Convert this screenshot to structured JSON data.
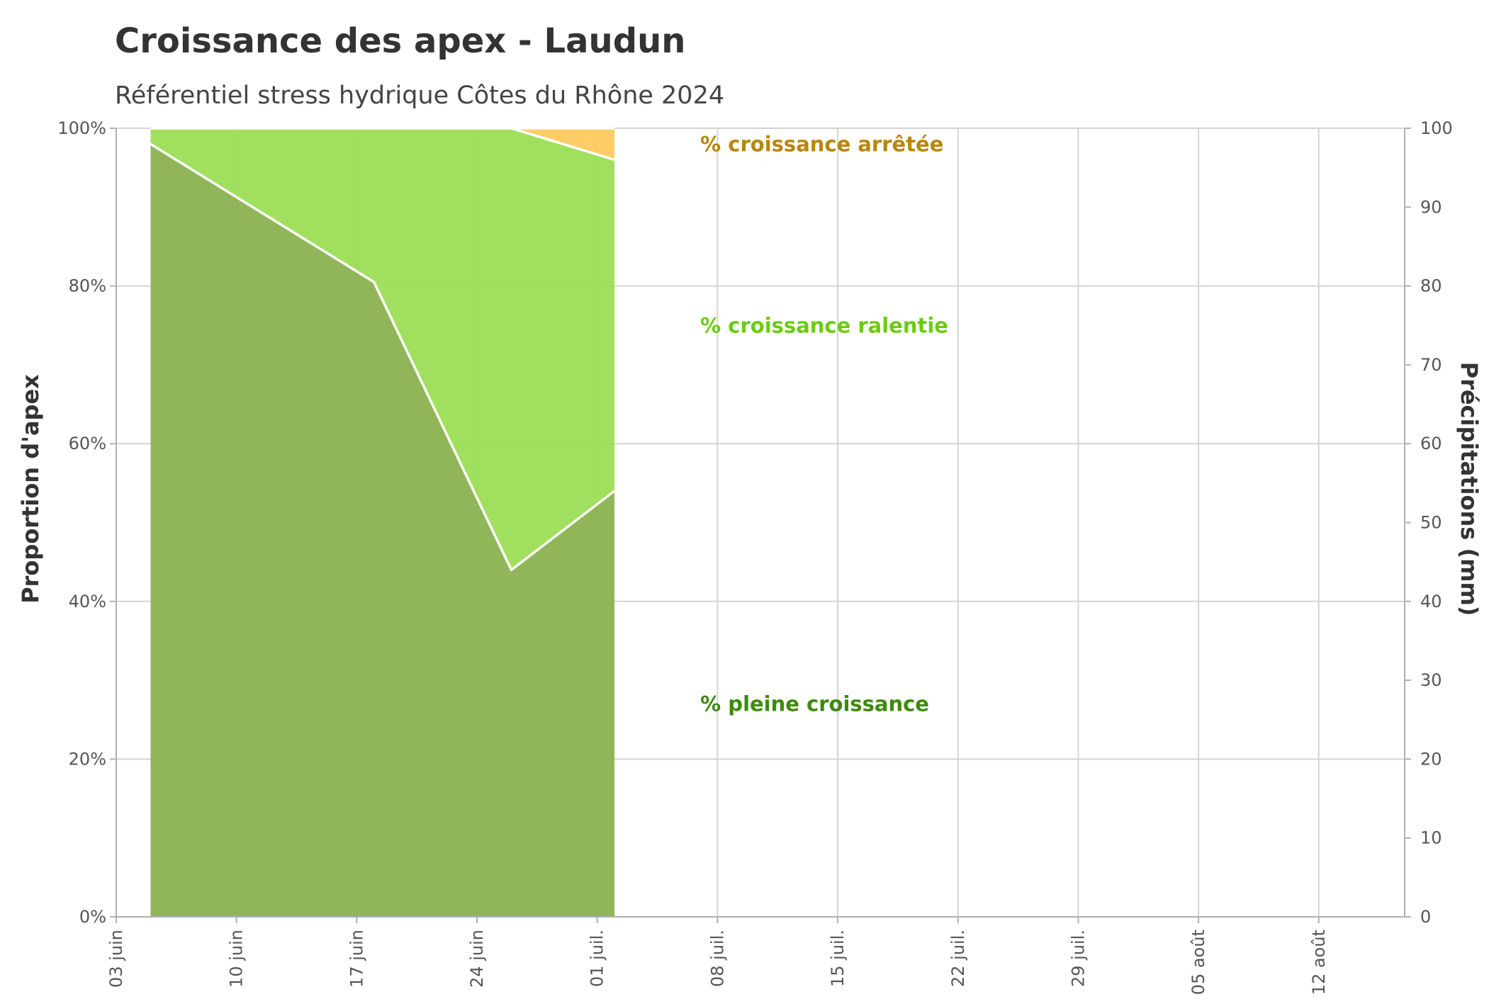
{
  "chart_data": {
    "type": "area",
    "title": "Croissance des apex - Laudun",
    "subtitle": "Référentiel stress hydrique Côtes du Rhône 2024",
    "ylabel_left": "Proportion d'apex",
    "ylabel_right": "Précipitations (mm)",
    "x_range": [
      "2024-06-03",
      "2024-08-17"
    ],
    "x_ticks": [
      {
        "date": "2024-06-03",
        "label": "03 juin"
      },
      {
        "date": "2024-06-10",
        "label": "10 juin"
      },
      {
        "date": "2024-06-17",
        "label": "17 juin"
      },
      {
        "date": "2024-06-24",
        "label": "24 juin"
      },
      {
        "date": "2024-07-01",
        "label": "01 juil."
      },
      {
        "date": "2024-07-08",
        "label": "08 juil."
      },
      {
        "date": "2024-07-15",
        "label": "15 juil."
      },
      {
        "date": "2024-07-22",
        "label": "22 juil."
      },
      {
        "date": "2024-07-29",
        "label": "29 juil."
      },
      {
        "date": "2024-08-05",
        "label": "05 août"
      },
      {
        "date": "2024-08-12",
        "label": "12 août"
      }
    ],
    "y_left": {
      "min": 0,
      "max": 100,
      "ticks": [
        0,
        20,
        40,
        60,
        80,
        100
      ],
      "format": "percent"
    },
    "y_right": {
      "min": 0,
      "max": 100,
      "ticks": [
        0,
        10,
        20,
        30,
        40,
        50,
        60,
        70,
        80,
        90,
        100
      ]
    },
    "grid": true,
    "stacked": true,
    "dates": [
      "2024-06-05",
      "2024-06-18",
      "2024-06-26",
      "2024-07-02"
    ],
    "series": [
      {
        "name": "% pleine croissance",
        "color": "#88b04b",
        "values": [
          98,
          80.5,
          44,
          54
        ]
      },
      {
        "name": "%  croissance ralentie",
        "color": "#99dd50",
        "values": [
          2,
          19.5,
          56,
          42
        ]
      },
      {
        "name": "% croissance arrêtée",
        "color": "#ffc95a",
        "values": [
          0,
          0,
          0,
          4
        ]
      }
    ],
    "annotations": [
      {
        "series": 2,
        "text": "% croissance arrêtée",
        "color": "#b8860b",
        "date": "2024-07-07",
        "value": 98
      },
      {
        "series": 1,
        "text": "%  croissance ralentie",
        "color": "#6acc10",
        "date": "2024-07-07",
        "value": 75
      },
      {
        "series": 0,
        "text": "% pleine croissance",
        "color": "#3e8a0e",
        "date": "2024-07-07",
        "value": 27
      }
    ]
  }
}
